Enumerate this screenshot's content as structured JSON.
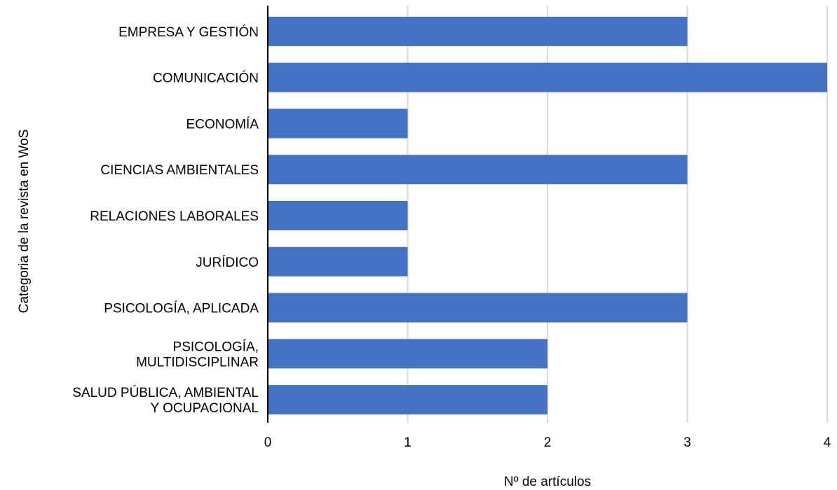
{
  "chart_data": {
    "type": "bar",
    "orientation": "horizontal",
    "title": "",
    "xlabel": "Nº de artículos",
    "ylabel": "Categoria de la revista en WoS",
    "categories": [
      [
        "EMPRESA Y GESTIÓN"
      ],
      [
        "COMUNICACIÓN"
      ],
      [
        "ECONOMÍA"
      ],
      [
        "CIENCIAS AMBIENTALES"
      ],
      [
        "RELACIONES LABORALES"
      ],
      [
        "JURÍDICO"
      ],
      [
        "PSICOLOGÍA, APLICADA"
      ],
      [
        "PSICOLOGÍA,",
        "MULTIDISCIPLINAR"
      ],
      [
        "SALUD PÚBLICA, AMBIENTAL",
        "Y OCUPACIONAL"
      ]
    ],
    "values": [
      3,
      4,
      1,
      3,
      1,
      1,
      3,
      2,
      2
    ],
    "xlim": [
      0,
      4
    ],
    "xticks": [
      "0",
      "1",
      "2",
      "3",
      "4"
    ],
    "grid": "vertical",
    "legend": "none",
    "bar_color": "#4472C4",
    "grid_color": "#D9D9D9",
    "axis_color": "#000000"
  }
}
